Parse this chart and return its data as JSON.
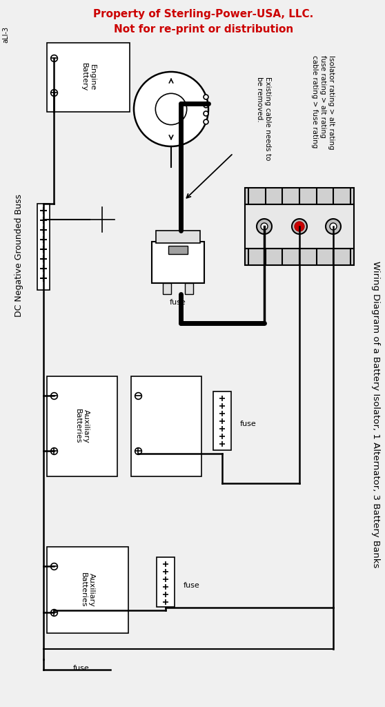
{
  "title_line1": "Property of Sterling-Power-USA, LLC.",
  "title_line2": "Not for re-print or distribution",
  "side_title": "Wiring Diagram of a Battery Isolator, 1 Alternator, 3 Battery Banks",
  "left_label": "DC Negative Grounded Buss",
  "corner_label": "aLI-3",
  "note1": "Isolator rating > alt rating\nfuse rating > alt rating\ncable rating > fuse rating",
  "note2": "Existing cable needs to\nbe removed.",
  "bg_color": "#f0f0f0",
  "title_color": "#cc0000",
  "line_color": "#000000",
  "component_fill": "#ffffff",
  "fuse_label": "fuse"
}
